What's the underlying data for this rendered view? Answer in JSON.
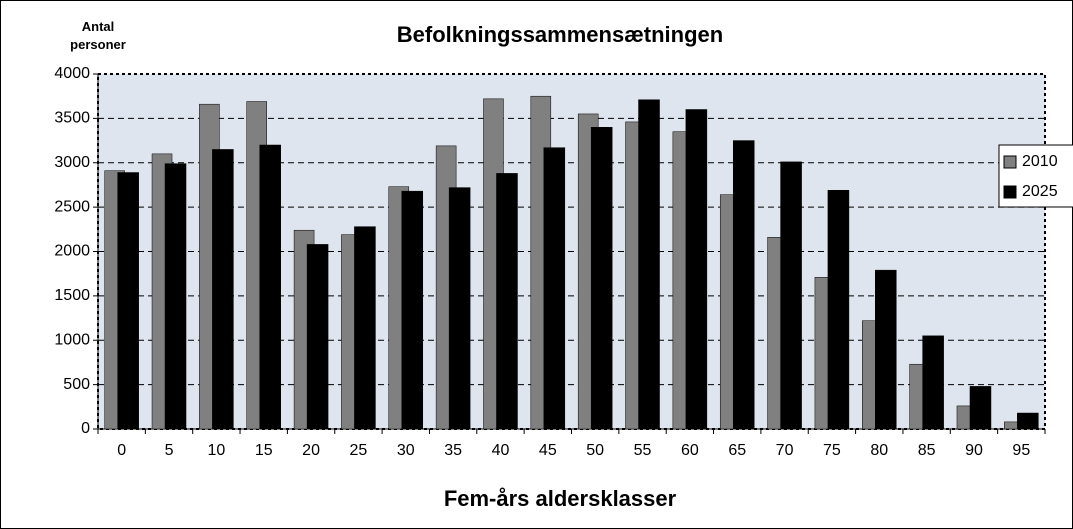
{
  "chart_data": {
    "type": "bar",
    "title": "Befolkningssammensætningen",
    "y_label": "Antal personer",
    "x_label": "Fem-års aldersklasser",
    "categories": [
      "0",
      "5",
      "10",
      "15",
      "20",
      "25",
      "30",
      "35",
      "40",
      "45",
      "50",
      "55",
      "60",
      "65",
      "70",
      "75",
      "80",
      "85",
      "90",
      "95"
    ],
    "series": [
      {
        "name": "2010",
        "color": "#808080",
        "values": [
          2910,
          3100,
          3660,
          3690,
          2240,
          2190,
          2730,
          3190,
          3720,
          3750,
          3550,
          3460,
          3350,
          2640,
          2160,
          1710,
          1220,
          730,
          260,
          80
        ]
      },
      {
        "name": "2025",
        "color": "#000000",
        "values": [
          2890,
          2990,
          3150,
          3200,
          2080,
          2280,
          2680,
          2720,
          2880,
          3170,
          3400,
          3710,
          3600,
          3250,
          3010,
          2690,
          1790,
          1050,
          480,
          180
        ]
      }
    ],
    "ylim": [
      0,
      4000
    ],
    "yticks": [
      0,
      500,
      1000,
      1500,
      2000,
      2500,
      3000,
      3500,
      4000
    ],
    "grid": true,
    "legend": "right"
  }
}
